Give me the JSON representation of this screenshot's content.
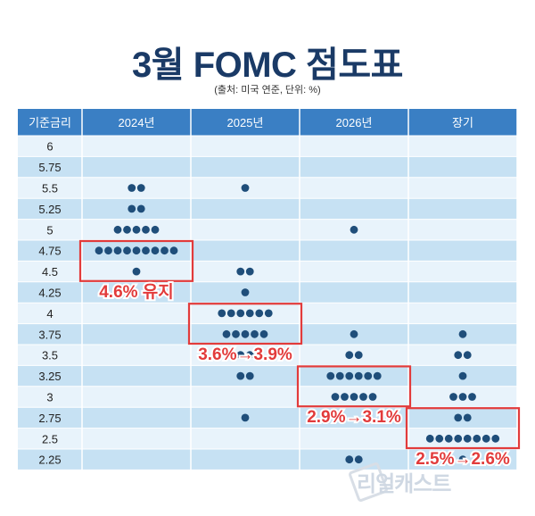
{
  "title": "3월 FOMC 점도표",
  "subtitle": "(출처: 미국 연준, 단위: %)",
  "watermark": "리얼캐스트",
  "colors": {
    "header_bg": "#3a7fc4",
    "row_light": "#e8f3fb",
    "row_dark": "#c6e1f3",
    "dot": "#1f4e7a",
    "annotation": "#e23b3b"
  },
  "chart_data": {
    "type": "table",
    "title": "3월 FOMC 점도표",
    "subtitle": "(출처: 미국 연준, 단위: %)",
    "row_header": "기준금리",
    "columns": [
      "2024년",
      "2025년",
      "2026년",
      "장기"
    ],
    "rates": [
      "6",
      "5.75",
      "5.5",
      "5.25",
      "5",
      "4.75",
      "4.5",
      "4.25",
      "4",
      "3.75",
      "3.5",
      "3.25",
      "3",
      "2.75",
      "2.5",
      "2.25"
    ],
    "dot_counts": [
      [
        0,
        0,
        0,
        0
      ],
      [
        0,
        0,
        0,
        0
      ],
      [
        2,
        1,
        0,
        0
      ],
      [
        2,
        0,
        0,
        0
      ],
      [
        5,
        0,
        1,
        0
      ],
      [
        9,
        0,
        0,
        0
      ],
      [
        1,
        2,
        0,
        0
      ],
      [
        0,
        1,
        0,
        0
      ],
      [
        0,
        6,
        0,
        0
      ],
      [
        0,
        5,
        1,
        1
      ],
      [
        0,
        2,
        2,
        2
      ],
      [
        0,
        2,
        6,
        1
      ],
      [
        0,
        0,
        5,
        3
      ],
      [
        0,
        1,
        0,
        2
      ],
      [
        0,
        0,
        0,
        8
      ],
      [
        0,
        0,
        2,
        1
      ]
    ],
    "annotations": [
      {
        "text": "4.6% 유지",
        "column": "2024년",
        "rates": [
          "4.75",
          "4.5"
        ]
      },
      {
        "text": "3.6%→3.9%",
        "column": "2025년",
        "rates": [
          "4",
          "3.75"
        ]
      },
      {
        "text": "2.9%→3.1%",
        "column": "2026년",
        "rates": [
          "3.25",
          "3"
        ]
      },
      {
        "text": "2.5%→2.6%",
        "column": "장기",
        "rates": [
          "2.75",
          "2.5"
        ]
      }
    ]
  }
}
